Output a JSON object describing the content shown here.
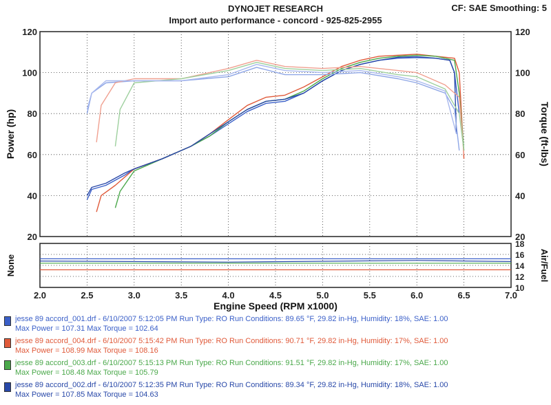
{
  "header": {
    "title": "DYNOJET RESEARCH",
    "subtitle": "Import auto performance  - concord  - 925-825-2955",
    "cf": "CF: SAE  Smoothing: 5"
  },
  "chart_data": [
    {
      "type": "line",
      "panel": "power-torque",
      "xlabel": "Engine Speed (RPM x1000)",
      "ylabel_left": "Power (hp)",
      "ylabel_right": "Torque (ft-lbs)",
      "xlim": [
        2.0,
        7.0
      ],
      "ylim": [
        20,
        120
      ],
      "x_ticks": [
        "2.0",
        "2.5",
        "3.0",
        "3.5",
        "4.0",
        "4.5",
        "5.0",
        "5.5",
        "6.0",
        "6.5",
        "7.0"
      ],
      "y_ticks_left": [
        "20",
        "40",
        "60",
        "80",
        "100",
        "120"
      ],
      "y_ticks_right": [
        "20",
        "40",
        "60",
        "80",
        "100",
        "120"
      ],
      "grid": true,
      "series": [
        {
          "run": "001",
          "kind": "power",
          "color": "#3a5fc8",
          "points": [
            [
              2.5,
              38
            ],
            [
              2.55,
              43
            ],
            [
              2.7,
              45
            ],
            [
              2.9,
              50
            ],
            [
              3.0,
              53
            ],
            [
              3.3,
              58
            ],
            [
              3.6,
              64
            ],
            [
              3.8,
              69
            ],
            [
              4.0,
              75
            ],
            [
              4.2,
              81
            ],
            [
              4.4,
              85
            ],
            [
              4.6,
              86
            ],
            [
              4.8,
              90
            ],
            [
              5.0,
              96
            ],
            [
              5.2,
              101
            ],
            [
              5.4,
              104
            ],
            [
              5.6,
              106
            ],
            [
              5.8,
              107
            ],
            [
              6.0,
              107.3
            ],
            [
              6.2,
              107
            ],
            [
              6.35,
              106
            ],
            [
              6.4,
              100
            ],
            [
              6.45,
              80
            ]
          ]
        },
        {
          "run": "004",
          "kind": "power",
          "color": "#e05a3a",
          "points": [
            [
              2.6,
              32
            ],
            [
              2.65,
              40
            ],
            [
              2.8,
              45
            ],
            [
              3.0,
              53
            ],
            [
              3.3,
              58
            ],
            [
              3.6,
              64
            ],
            [
              3.8,
              70
            ],
            [
              4.0,
              77
            ],
            [
              4.2,
              84
            ],
            [
              4.4,
              88
            ],
            [
              4.6,
              89
            ],
            [
              4.8,
              93
            ],
            [
              5.0,
              98
            ],
            [
              5.2,
              103
            ],
            [
              5.4,
              106
            ],
            [
              5.6,
              108
            ],
            [
              5.8,
              108.5
            ],
            [
              6.0,
              109
            ],
            [
              6.2,
              108
            ],
            [
              6.4,
              107
            ],
            [
              6.45,
              100
            ],
            [
              6.5,
              58
            ]
          ]
        },
        {
          "run": "003",
          "kind": "power",
          "color": "#4aa84a",
          "points": [
            [
              2.8,
              34
            ],
            [
              2.85,
              42
            ],
            [
              3.0,
              52
            ],
            [
              3.3,
              58
            ],
            [
              3.6,
              64
            ],
            [
              3.8,
              69
            ],
            [
              4.0,
              76
            ],
            [
              4.2,
              82
            ],
            [
              4.4,
              86
            ],
            [
              4.6,
              87
            ],
            [
              4.8,
              91
            ],
            [
              5.0,
              97
            ],
            [
              5.2,
              102
            ],
            [
              5.4,
              105
            ],
            [
              5.6,
              107
            ],
            [
              5.8,
              108
            ],
            [
              6.0,
              108.5
            ],
            [
              6.2,
              108
            ],
            [
              6.4,
              106
            ],
            [
              6.45,
              90
            ],
            [
              6.5,
              62
            ]
          ]
        },
        {
          "run": "002",
          "kind": "power",
          "color": "#2848a8",
          "points": [
            [
              2.5,
              40
            ],
            [
              2.55,
              44
            ],
            [
              2.7,
              46
            ],
            [
              2.9,
              51
            ],
            [
              3.0,
              53
            ],
            [
              3.3,
              58
            ],
            [
              3.6,
              64
            ],
            [
              3.8,
              70
            ],
            [
              4.0,
              76
            ],
            [
              4.2,
              82
            ],
            [
              4.4,
              86
            ],
            [
              4.6,
              87
            ],
            [
              4.8,
              90
            ],
            [
              5.0,
              96
            ],
            [
              5.2,
              101
            ],
            [
              5.4,
              104
            ],
            [
              5.6,
              106
            ],
            [
              5.8,
              107.5
            ],
            [
              6.0,
              107.8
            ],
            [
              6.2,
              107
            ],
            [
              6.35,
              106
            ],
            [
              6.4,
              100
            ],
            [
              6.42,
              70
            ]
          ]
        },
        {
          "run": "001",
          "kind": "torque",
          "color": "#8ea6e6",
          "points": [
            [
              2.5,
              80
            ],
            [
              2.55,
              90
            ],
            [
              2.7,
              95
            ],
            [
              3.0,
              96
            ],
            [
              3.5,
              96
            ],
            [
              4.0,
              98
            ],
            [
              4.3,
              102.6
            ],
            [
              4.6,
              99
            ],
            [
              5.0,
              99
            ],
            [
              5.4,
              100
            ],
            [
              5.8,
              97
            ],
            [
              6.0,
              95
            ],
            [
              6.3,
              90
            ],
            [
              6.4,
              82
            ],
            [
              6.45,
              62
            ]
          ]
        },
        {
          "run": "004",
          "kind": "torque",
          "color": "#f0a090",
          "points": [
            [
              2.6,
              66
            ],
            [
              2.65,
              84
            ],
            [
              2.8,
              95
            ],
            [
              3.0,
              97
            ],
            [
              3.5,
              97
            ],
            [
              4.0,
              102
            ],
            [
              4.3,
              106
            ],
            [
              4.6,
              103
            ],
            [
              5.0,
              102
            ],
            [
              5.4,
              103
            ],
            [
              5.8,
              101
            ],
            [
              6.0,
              100
            ],
            [
              6.3,
              94
            ],
            [
              6.45,
              88
            ],
            [
              6.5,
              60
            ]
          ]
        },
        {
          "run": "003",
          "kind": "torque",
          "color": "#9ed09e",
          "points": [
            [
              2.8,
              64
            ],
            [
              2.85,
              82
            ],
            [
              3.0,
              95
            ],
            [
              3.5,
              97
            ],
            [
              4.0,
              101
            ],
            [
              4.3,
              105
            ],
            [
              4.6,
              102
            ],
            [
              5.0,
              101
            ],
            [
              5.4,
              102
            ],
            [
              5.8,
              99
            ],
            [
              6.0,
              98
            ],
            [
              6.3,
              92
            ],
            [
              6.45,
              80
            ],
            [
              6.5,
              62
            ]
          ]
        },
        {
          "run": "002",
          "kind": "torque",
          "color": "#a8b8ee",
          "points": [
            [
              2.5,
              82
            ],
            [
              2.55,
              90
            ],
            [
              2.7,
              96
            ],
            [
              3.0,
              96
            ],
            [
              3.5,
              96
            ],
            [
              4.0,
              99
            ],
            [
              4.3,
              104
            ],
            [
              4.6,
              101
            ],
            [
              5.0,
              100
            ],
            [
              5.4,
              101
            ],
            [
              5.8,
              98
            ],
            [
              6.0,
              96
            ],
            [
              6.3,
              91
            ],
            [
              6.42,
              70
            ]
          ]
        }
      ]
    },
    {
      "type": "line",
      "panel": "air-fuel",
      "ylabel_left": "None",
      "ylabel_right": "Air/Fuel",
      "xlim": [
        2.0,
        7.0
      ],
      "ylim": [
        10,
        18
      ],
      "y_ticks_right": [
        "10",
        "12",
        "14",
        "16",
        "18"
      ],
      "grid": true,
      "series": [
        {
          "color": "#3a5fc8",
          "points": [
            [
              2.0,
              15.2
            ],
            [
              7.0,
              15.2
            ]
          ]
        },
        {
          "color": "#e05a3a",
          "points": [
            [
              2.0,
              13.2
            ],
            [
              7.0,
              13.2
            ]
          ]
        },
        {
          "color": "#4aa84a",
          "points": [
            [
              2.0,
              14.4
            ],
            [
              7.0,
              14.4
            ]
          ]
        },
        {
          "color": "#2848a8",
          "points": [
            [
              2.0,
              14.8
            ],
            [
              4.0,
              14.6
            ],
            [
              6.0,
              14.9
            ],
            [
              7.0,
              14.7
            ]
          ]
        }
      ]
    }
  ],
  "legend": [
    {
      "color": "#3a5fc8",
      "line1": "jesse 89 accord_001.drf - 6/10/2007 5:12:05 PM  Run Type: RO  Run Conditions: 89.65 °F, 29.82 in-Hg,  Humidity:  18%, SAE: 1.00",
      "line2": "Max Power = 107.31  Max Torque = 102.64"
    },
    {
      "color": "#e05a3a",
      "line1": "jesse 89 accord_004.drf - 6/10/2007 5:15:42 PM  Run Type: RO  Run Conditions: 90.71 °F, 29.82 in-Hg,  Humidity:  17%, SAE: 1.00",
      "line2": "Max Power = 108.99  Max Torque = 108.16"
    },
    {
      "color": "#4aa84a",
      "line1": "jesse 89 accord_003.drf - 6/10/2007 5:15:13 PM  Run Type: RO  Run Conditions: 91.51 °F, 29.82 in-Hg,  Humidity:  17%, SAE: 1.00",
      "line2": "Max Power = 108.48  Max Torque = 105.79"
    },
    {
      "color": "#2848a8",
      "line1": "jesse 89 accord_002.drf - 6/10/2007 5:12:35 PM  Run Type: RO  Run Conditions: 89.34 °F, 29.82 in-Hg,  Humidity:  18%, SAE: 1.00",
      "line2": "Max Power = 107.85  Max Torque = 104.63"
    }
  ]
}
